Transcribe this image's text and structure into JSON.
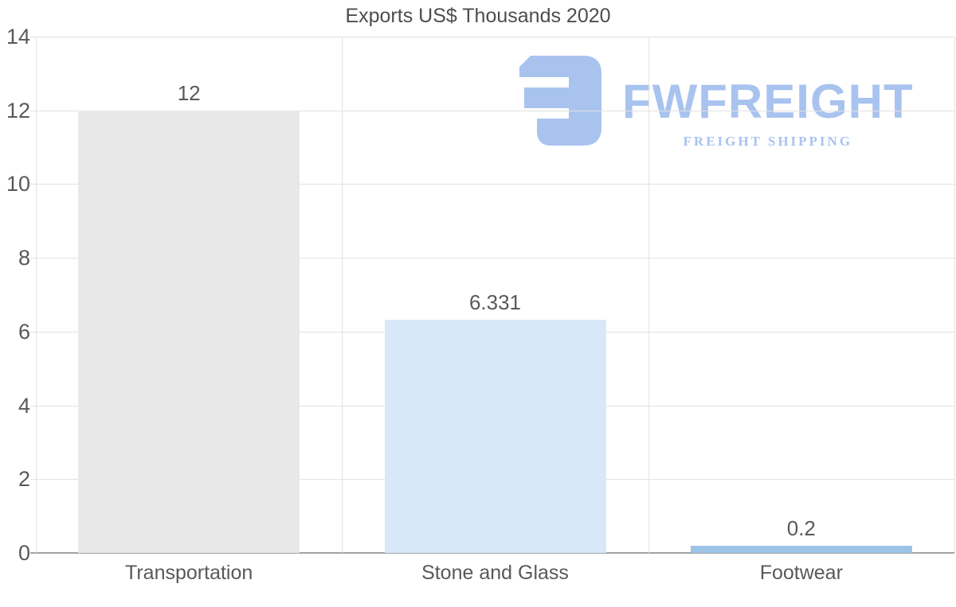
{
  "chart_data": {
    "type": "bar",
    "title": "Exports US$ Thousands 2020",
    "categories": [
      "Transportation",
      "Stone and Glass",
      "Footwear"
    ],
    "values": [
      12,
      6.331,
      0.2
    ],
    "value_labels": [
      "12",
      "6.331",
      "0.2"
    ],
    "bar_colors": [
      "#e8e8e8",
      "#d9e8f8",
      "#9dc3e6"
    ],
    "xlabel": "",
    "ylabel": "",
    "ylim": [
      0,
      14
    ],
    "ytick_step": 2,
    "ytick_labels": [
      "0",
      "2",
      "4",
      "6",
      "8",
      "10",
      "12",
      "14"
    ],
    "grid": true,
    "legend": false
  },
  "watermark": {
    "name": "FWFREIGHT",
    "tagline": "FREIGHT SHIPPING",
    "color": "#a9c3ef"
  },
  "colors": {
    "text": "#595959",
    "title": "#4d4d4d",
    "gridline": "#e2e2e2",
    "baseline": "#a3a3a3"
  }
}
